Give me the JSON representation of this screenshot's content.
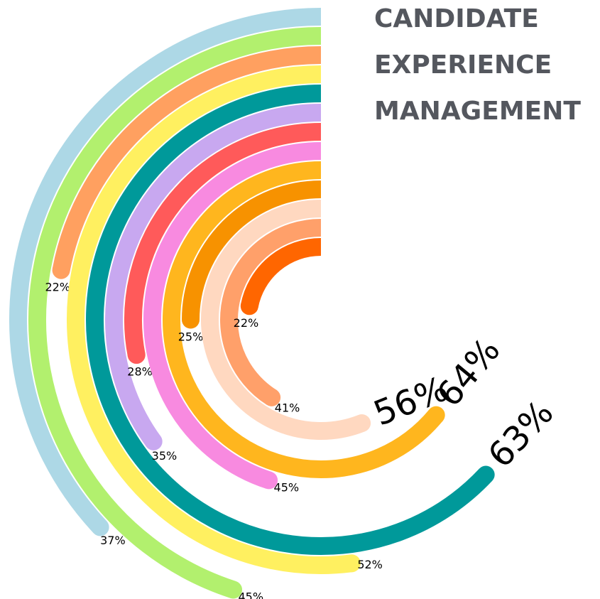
{
  "chart_data": {
    "type": "radial-bar",
    "title": [
      "CANDIDATE",
      "EXPERIENCE",
      "MANAGEMENT"
    ],
    "series": [
      {
        "color": "#add8e6",
        "values": [
          37
        ]
      },
      {
        "color": "#b2f06e",
        "values": [
          45
        ]
      },
      {
        "color": "#ffa060",
        "values": [
          22
        ]
      },
      {
        "color": "#fff060",
        "values": [
          52
        ]
      },
      {
        "color": "#00999a",
        "values": [
          63
        ]
      },
      {
        "color": "#c8a8f0",
        "values": [
          35
        ]
      },
      {
        "color": "#ff5a5a",
        "values": [
          28
        ]
      },
      {
        "color": "#f88ae0",
        "values": [
          45
        ]
      },
      {
        "color": "#ffb61e",
        "values": [
          64
        ]
      },
      {
        "color": "#f79200",
        "values": [
          25
        ]
      },
      {
        "color": "#ffd8c0",
        "values": [
          56
        ]
      },
      {
        "color": "#ffa06a",
        "values": [
          41
        ]
      },
      {
        "color": "#ff6600",
        "values": [
          22
        ]
      }
    ],
    "value_labels": [
      "37%",
      "45%",
      "22%",
      "52%",
      "63%",
      "35%",
      "28%",
      "45%",
      "64%",
      "25%",
      "56%",
      "41%",
      "22%"
    ],
    "ylim": [
      0,
      100
    ]
  }
}
